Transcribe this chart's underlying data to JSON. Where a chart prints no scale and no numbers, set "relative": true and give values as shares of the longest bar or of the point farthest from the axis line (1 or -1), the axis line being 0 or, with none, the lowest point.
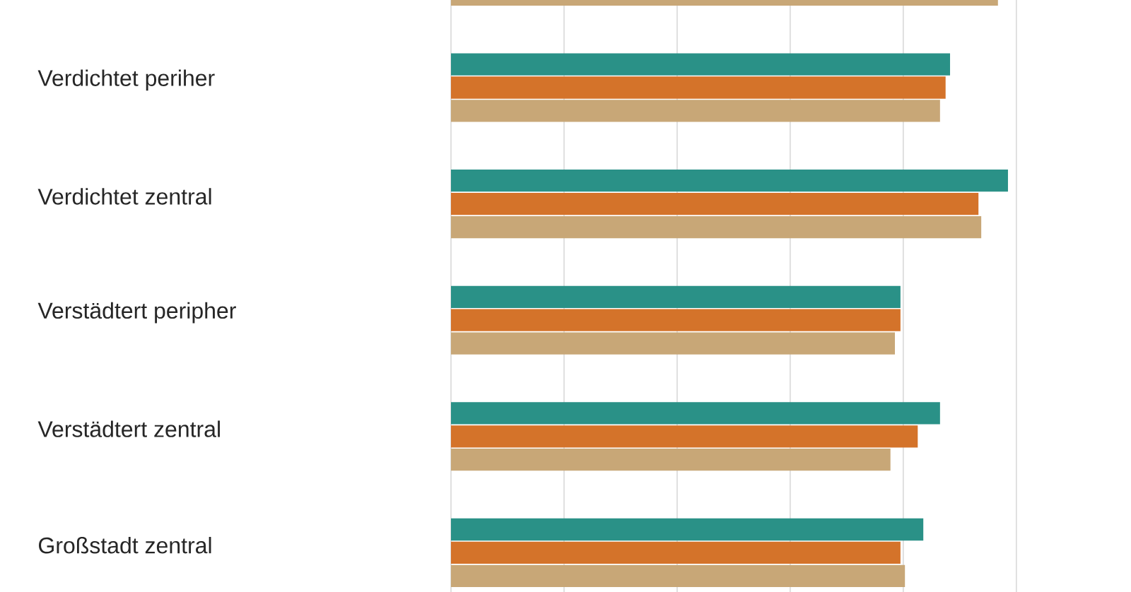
{
  "chart_data": {
    "type": "bar",
    "orientation": "horizontal",
    "relative": true,
    "grid": "x",
    "categories": [
      null,
      "Verdichtet periher",
      "Verdichtet zentral",
      "Verstädtert peripher",
      "Verstädtert zentral",
      "Großstadt zentral"
    ],
    "series": [
      {
        "color": "#2a9187",
        "values": [
          null,
          0.896,
          1,
          0.807,
          0.878,
          0.848
        ]
      },
      {
        "color": "#d4732a",
        "values": [
          null,
          0.888,
          0.947,
          0.807,
          0.838,
          0.807
        ]
      },
      {
        "color": "#c8a777",
        "values": [
          0.982,
          0.878,
          0.952,
          0.797,
          0.789,
          0.815
        ]
      }
    ]
  }
}
